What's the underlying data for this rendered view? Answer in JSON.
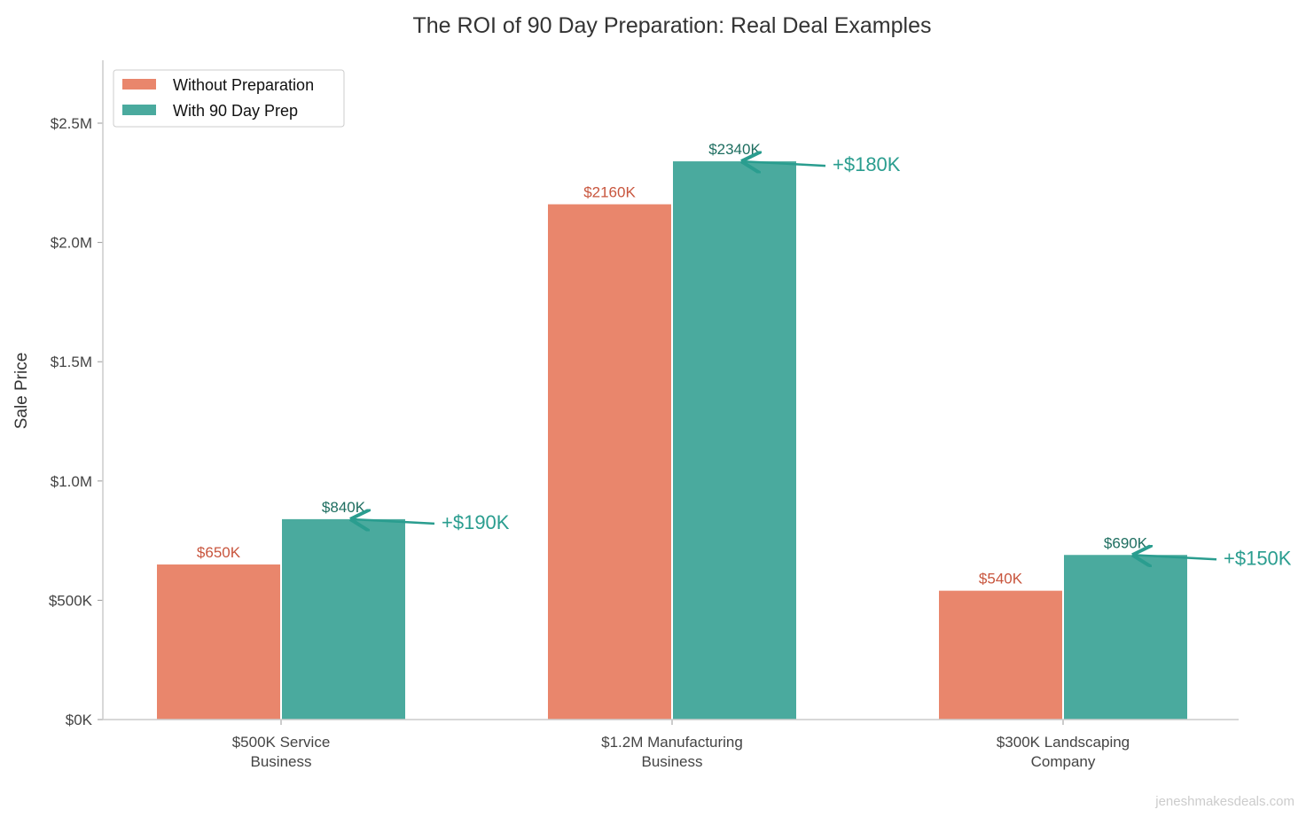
{
  "chart_data": {
    "type": "bar",
    "title": "The ROI of 90 Day Preparation: Real Deal Examples",
    "xlabel": "",
    "ylabel": "Sale Price",
    "categories": [
      [
        "$500K Service",
        "Business"
      ],
      [
        "$1.2M Manufacturing",
        "Business"
      ],
      [
        "$300K Landscaping",
        "Company"
      ]
    ],
    "units": "thousands of dollars",
    "series": [
      {
        "name": "Without Preparation",
        "values": [
          650,
          2160,
          540
        ],
        "labels": [
          "$650K",
          "$2160K",
          "$540K"
        ],
        "color": "#E9866C",
        "label_color": "#C8553D"
      },
      {
        "name": "With 90 Day Prep",
        "values": [
          840,
          2340,
          690
        ],
        "labels": [
          "$840K",
          "$2340K",
          "$690K"
        ],
        "color": "#4AAA9E",
        "label_color": "#1E6E60"
      }
    ],
    "annotations": [
      "+$190K",
      "+$180K",
      "+$150K"
    ],
    "annotation_color": "#2A9D8F",
    "ylim": [
      0,
      2764
    ],
    "yticks": [
      0,
      500,
      1000,
      1500,
      2000,
      2500
    ],
    "ytick_labels": [
      "$0K",
      "$500K",
      "$1.0M",
      "$1.5M",
      "$2.0M",
      "$2.5M"
    ],
    "grid": false,
    "legend": "top-left",
    "watermark": "jeneshmakesdeals.com"
  }
}
